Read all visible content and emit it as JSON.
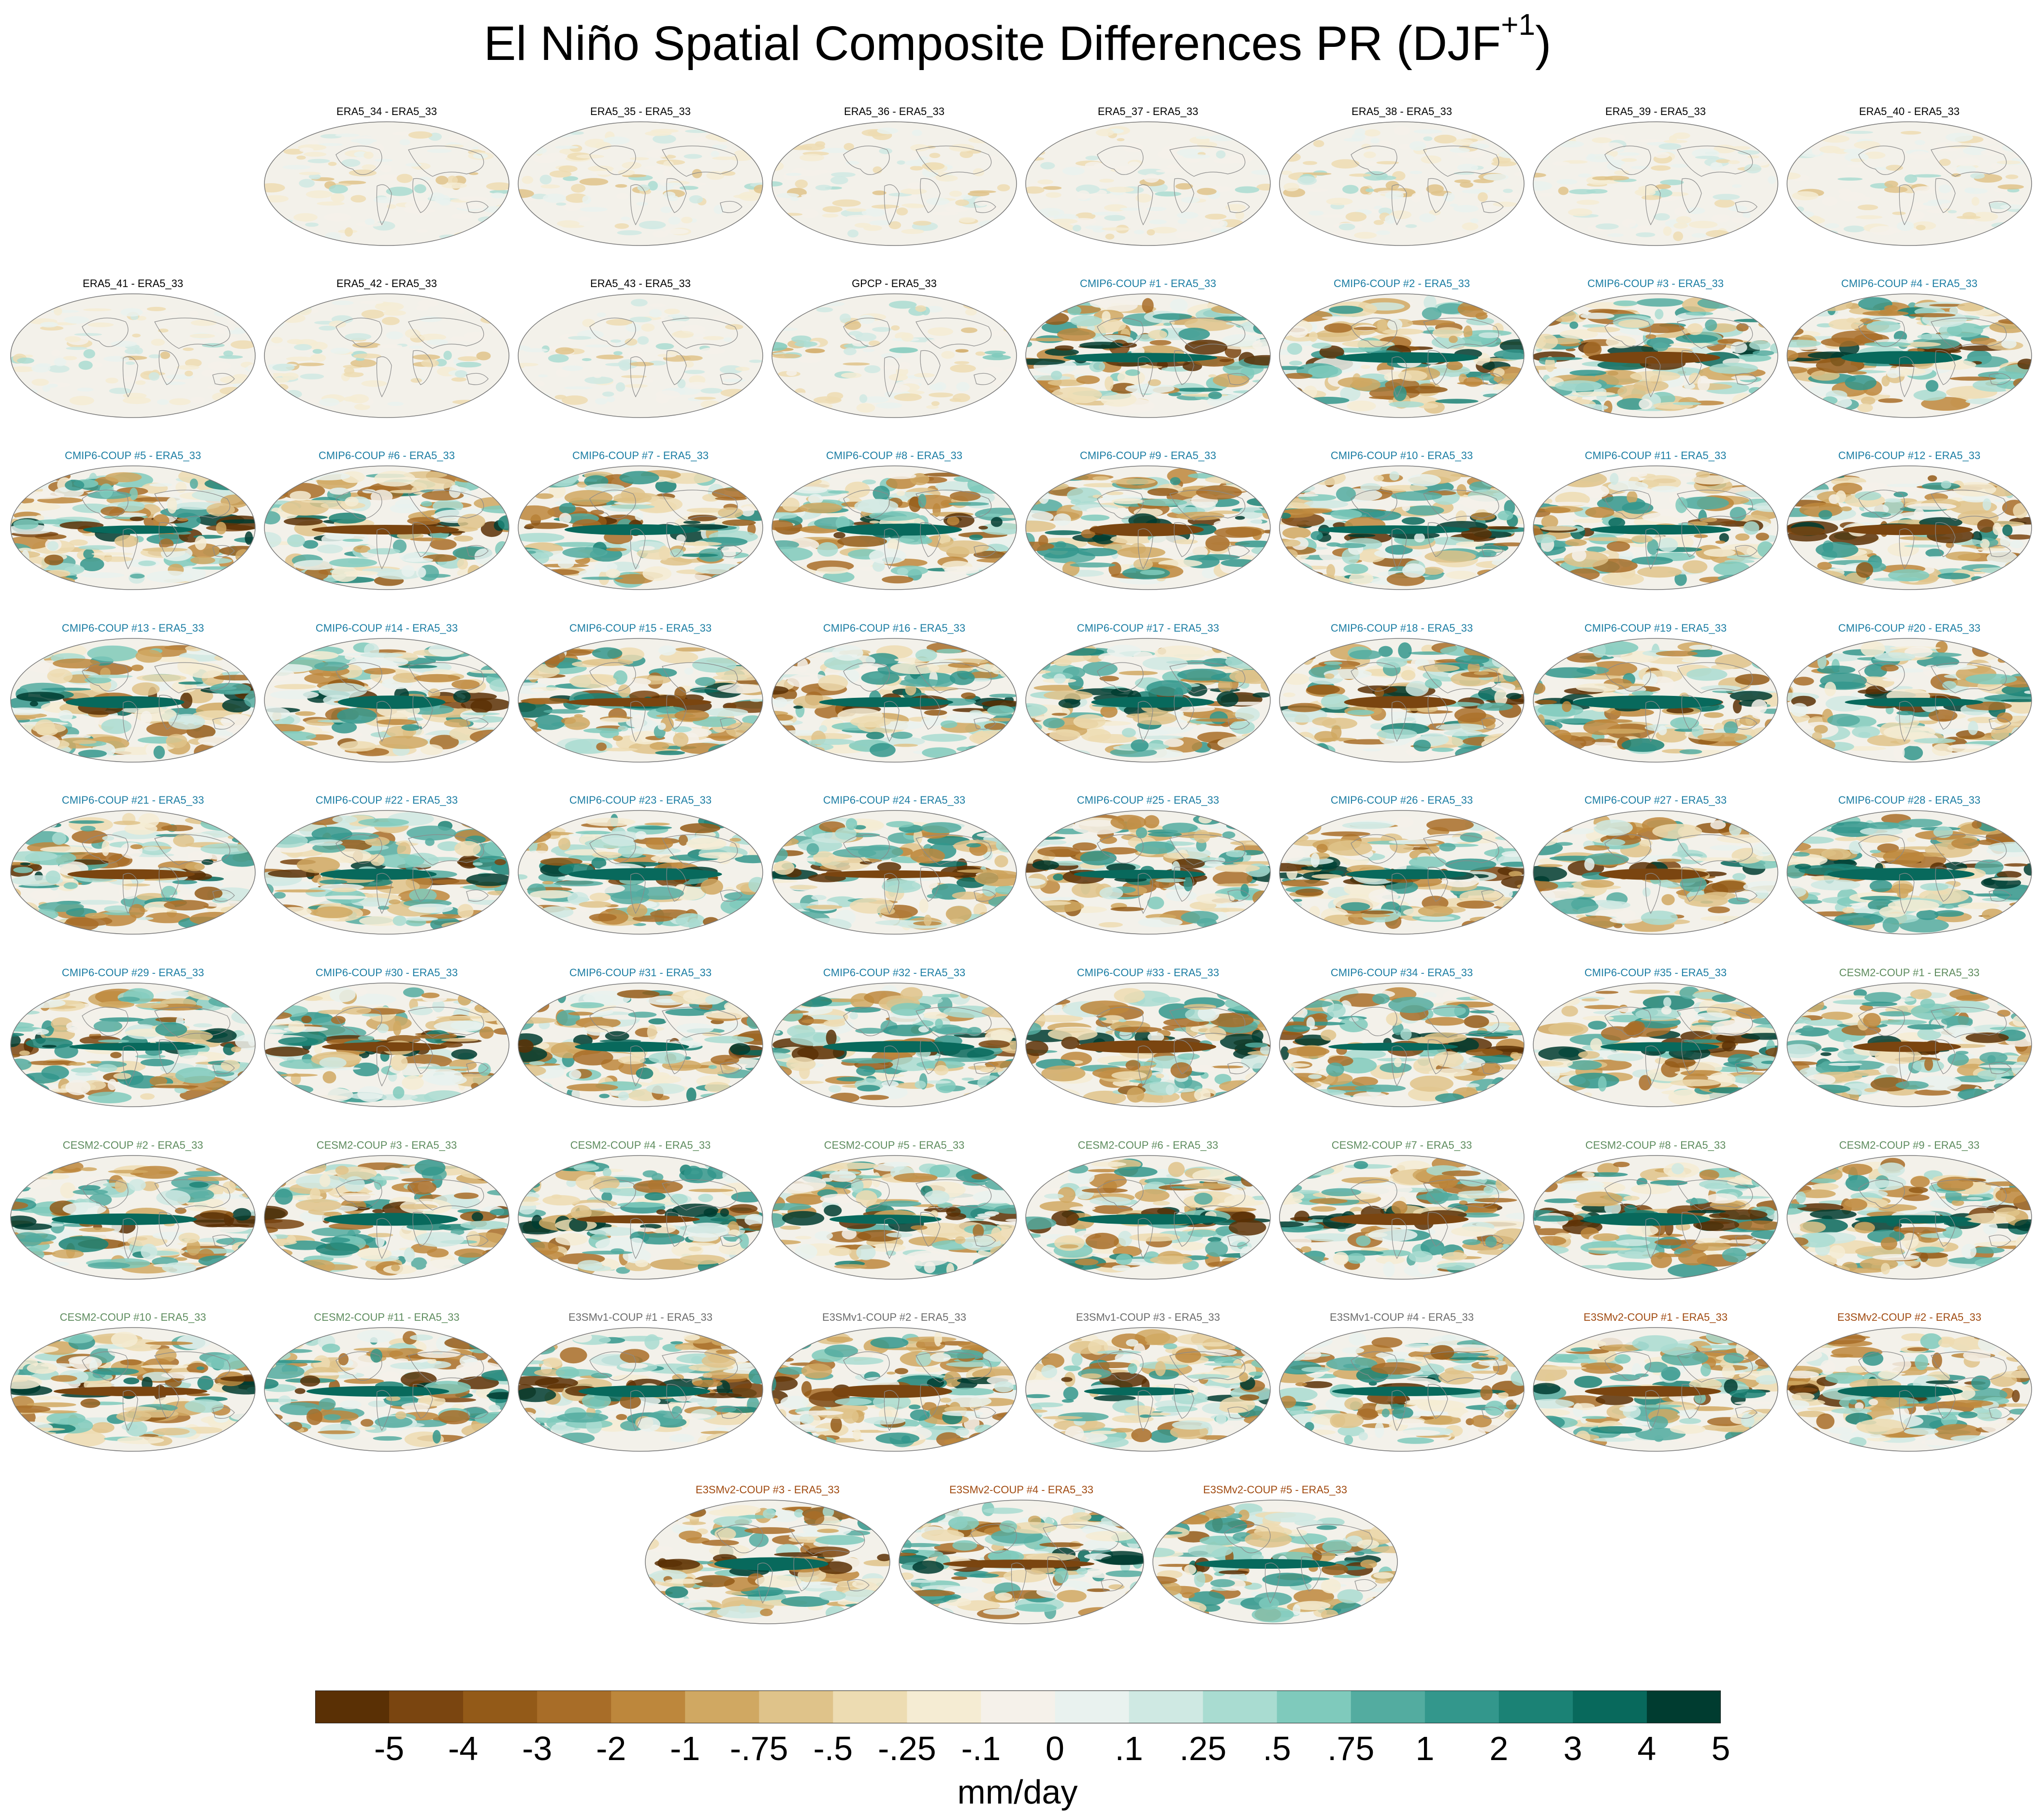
{
  "figure": {
    "title": "El Niño Spatial Composite Differences PR (DJF",
    "title_superscript": "+1",
    "title_end": ")"
  },
  "colorbar": {
    "tick_labels": [
      "-5",
      "-4",
      "-3",
      "-2",
      "-1",
      "-.75",
      "-.5",
      "-.25",
      "-.1",
      "0",
      ".1",
      ".25",
      ".5",
      ".75",
      "1",
      "2",
      "3",
      "4",
      "5"
    ],
    "units": "mm/day",
    "colors": [
      "#5a3005",
      "#7a4510",
      "#935a18",
      "#a86d28",
      "#bd873c",
      "#d0a862",
      "#dfc38a",
      "#eddcb2",
      "#f5ecd3",
      "#f5f1ea",
      "#e9f2ef",
      "#cfe9e3",
      "#a9dcd1",
      "#7fcabc",
      "#53aca0",
      "#33978c",
      "#1b8275",
      "#08695c",
      "#003c30"
    ]
  },
  "group_colors": {
    "ERA5": "#000000",
    "GPCP": "#000000",
    "CMIP6-COUP": "#1b7da3",
    "CESM2-COUP": "#5e8c5e",
    "E3SMv1-COUP": "#6b6b6b",
    "E3SMv2-COUP": "#a04a10"
  },
  "panels": [
    {
      "label": "ERA5_34 - ERA5_33",
      "group": "ERA5"
    },
    {
      "label": "ERA5_35 - ERA5_33",
      "group": "ERA5"
    },
    {
      "label": "ERA5_36 - ERA5_33",
      "group": "ERA5"
    },
    {
      "label": "ERA5_37 - ERA5_33",
      "group": "ERA5"
    },
    {
      "label": "ERA5_38 - ERA5_33",
      "group": "ERA5"
    },
    {
      "label": "ERA5_39 - ERA5_33",
      "group": "ERA5"
    },
    {
      "label": "ERA5_40 - ERA5_33",
      "group": "ERA5"
    },
    {
      "label": "ERA5_41 - ERA5_33",
      "group": "ERA5"
    },
    {
      "label": "ERA5_42 - ERA5_33",
      "group": "ERA5"
    },
    {
      "label": "ERA5_43 - ERA5_33",
      "group": "ERA5"
    },
    {
      "label": "GPCP - ERA5_33",
      "group": "GPCP"
    },
    {
      "label": "CMIP6-COUP  #1 - ERA5_33",
      "group": "CMIP6-COUP"
    },
    {
      "label": "CMIP6-COUP  #2 - ERA5_33",
      "group": "CMIP6-COUP"
    },
    {
      "label": "CMIP6-COUP  #3 - ERA5_33",
      "group": "CMIP6-COUP"
    },
    {
      "label": "CMIP6-COUP  #4 - ERA5_33",
      "group": "CMIP6-COUP"
    },
    {
      "label": "CMIP6-COUP  #5 - ERA5_33",
      "group": "CMIP6-COUP"
    },
    {
      "label": "CMIP6-COUP  #6 - ERA5_33",
      "group": "CMIP6-COUP"
    },
    {
      "label": "CMIP6-COUP  #7 - ERA5_33",
      "group": "CMIP6-COUP"
    },
    {
      "label": "CMIP6-COUP  #8 - ERA5_33",
      "group": "CMIP6-COUP"
    },
    {
      "label": "CMIP6-COUP  #9 - ERA5_33",
      "group": "CMIP6-COUP"
    },
    {
      "label": "CMIP6-COUP  #10 - ERA5_33",
      "group": "CMIP6-COUP"
    },
    {
      "label": "CMIP6-COUP  #11 - ERA5_33",
      "group": "CMIP6-COUP"
    },
    {
      "label": "CMIP6-COUP  #12 - ERA5_33",
      "group": "CMIP6-COUP"
    },
    {
      "label": "CMIP6-COUP  #13 - ERA5_33",
      "group": "CMIP6-COUP"
    },
    {
      "label": "CMIP6-COUP  #14 - ERA5_33",
      "group": "CMIP6-COUP"
    },
    {
      "label": "CMIP6-COUP  #15 - ERA5_33",
      "group": "CMIP6-COUP"
    },
    {
      "label": "CMIP6-COUP  #16 - ERA5_33",
      "group": "CMIP6-COUP"
    },
    {
      "label": "CMIP6-COUP  #17 - ERA5_33",
      "group": "CMIP6-COUP"
    },
    {
      "label": "CMIP6-COUP  #18 - ERA5_33",
      "group": "CMIP6-COUP"
    },
    {
      "label": "CMIP6-COUP  #19 - ERA5_33",
      "group": "CMIP6-COUP"
    },
    {
      "label": "CMIP6-COUP  #20 - ERA5_33",
      "group": "CMIP6-COUP"
    },
    {
      "label": "CMIP6-COUP  #21 - ERA5_33",
      "group": "CMIP6-COUP"
    },
    {
      "label": "CMIP6-COUP  #22 - ERA5_33",
      "group": "CMIP6-COUP"
    },
    {
      "label": "CMIP6-COUP  #23 - ERA5_33",
      "group": "CMIP6-COUP"
    },
    {
      "label": "CMIP6-COUP  #24 - ERA5_33",
      "group": "CMIP6-COUP"
    },
    {
      "label": "CMIP6-COUP  #25 - ERA5_33",
      "group": "CMIP6-COUP"
    },
    {
      "label": "CMIP6-COUP  #26 - ERA5_33",
      "group": "CMIP6-COUP"
    },
    {
      "label": "CMIP6-COUP  #27 - ERA5_33",
      "group": "CMIP6-COUP"
    },
    {
      "label": "CMIP6-COUP  #28 - ERA5_33",
      "group": "CMIP6-COUP"
    },
    {
      "label": "CMIP6-COUP  #29 - ERA5_33",
      "group": "CMIP6-COUP"
    },
    {
      "label": "CMIP6-COUP  #30 - ERA5_33",
      "group": "CMIP6-COUP"
    },
    {
      "label": "CMIP6-COUP  #31 - ERA5_33",
      "group": "CMIP6-COUP"
    },
    {
      "label": "CMIP6-COUP  #32 - ERA5_33",
      "group": "CMIP6-COUP"
    },
    {
      "label": "CMIP6-COUP  #33 - ERA5_33",
      "group": "CMIP6-COUP"
    },
    {
      "label": "CMIP6-COUP  #34 - ERA5_33",
      "group": "CMIP6-COUP"
    },
    {
      "label": "CMIP6-COUP  #35 - ERA5_33",
      "group": "CMIP6-COUP"
    },
    {
      "label": "CESM2-COUP  #1 - ERA5_33",
      "group": "CESM2-COUP"
    },
    {
      "label": "CESM2-COUP  #2 - ERA5_33",
      "group": "CESM2-COUP"
    },
    {
      "label": "CESM2-COUP  #3 - ERA5_33",
      "group": "CESM2-COUP"
    },
    {
      "label": "CESM2-COUP  #4 - ERA5_33",
      "group": "CESM2-COUP"
    },
    {
      "label": "CESM2-COUP  #5 - ERA5_33",
      "group": "CESM2-COUP"
    },
    {
      "label": "CESM2-COUP  #6 - ERA5_33",
      "group": "CESM2-COUP"
    },
    {
      "label": "CESM2-COUP  #7 - ERA5_33",
      "group": "CESM2-COUP"
    },
    {
      "label": "CESM2-COUP  #8 - ERA5_33",
      "group": "CESM2-COUP"
    },
    {
      "label": "CESM2-COUP  #9 - ERA5_33",
      "group": "CESM2-COUP"
    },
    {
      "label": "CESM2-COUP  #10 - ERA5_33",
      "group": "CESM2-COUP"
    },
    {
      "label": "CESM2-COUP  #11 - ERA5_33",
      "group": "CESM2-COUP"
    },
    {
      "label": "E3SMv1-COUP #1 - ERA5_33",
      "group": "E3SMv1-COUP"
    },
    {
      "label": "E3SMv1-COUP #2 - ERA5_33",
      "group": "E3SMv1-COUP"
    },
    {
      "label": "E3SMv1-COUP #3 - ERA5_33",
      "group": "E3SMv1-COUP"
    },
    {
      "label": "E3SMv1-COUP #4 - ERA5_33",
      "group": "E3SMv1-COUP"
    },
    {
      "label": "E3SMv2-COUP #1 - ERA5_33",
      "group": "E3SMv2-COUP"
    },
    {
      "label": "E3SMv2-COUP #2 - ERA5_33",
      "group": "E3SMv2-COUP"
    },
    {
      "label": "E3SMv2-COUP #3 - ERA5_33",
      "group": "E3SMv2-COUP"
    },
    {
      "label": "E3SMv2-COUP #4 - ERA5_33",
      "group": "E3SMv2-COUP"
    },
    {
      "label": "E3SMv2-COUP #5 - ERA5_33",
      "group": "E3SMv2-COUP"
    }
  ]
}
